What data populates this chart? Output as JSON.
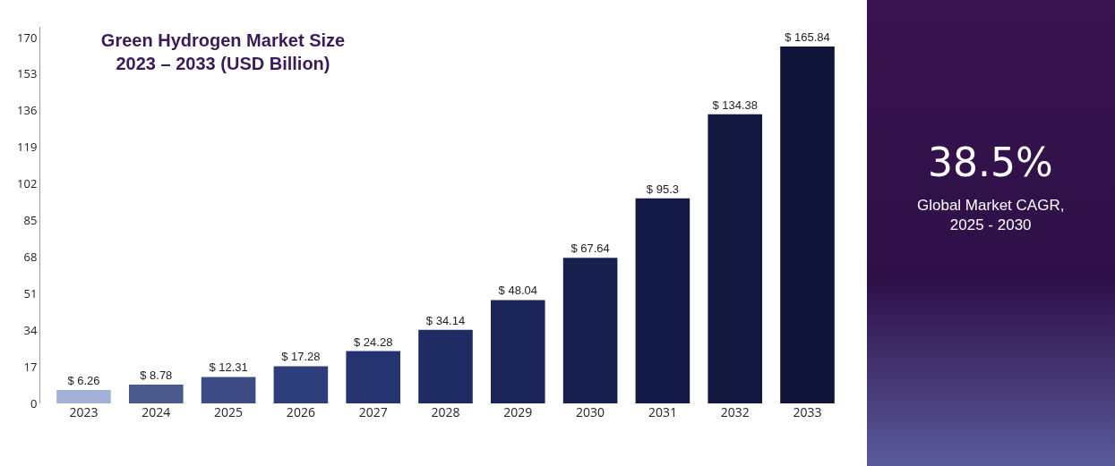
{
  "chart_data": {
    "type": "bar",
    "title": "Green Hydrogen Market Size\n2023 – 2033 (USD Billion)",
    "categories": [
      "2023",
      "2024",
      "2025",
      "2026",
      "2027",
      "2028",
      "2029",
      "2030",
      "2031",
      "2032",
      "2033"
    ],
    "values": [
      6.26,
      8.78,
      12.31,
      17.28,
      24.28,
      34.14,
      48.04,
      67.64,
      95.3,
      134.38,
      165.84
    ],
    "value_labels": [
      "$ 6.26",
      "$ 8.78",
      "$ 12.31",
      "$ 17.28",
      "$ 24.28",
      "$ 34.14",
      "$ 48.04",
      "$ 67.64",
      "$ 95.3",
      "$ 134.38",
      "$ 165.84"
    ],
    "colors": [
      "#a3b0d8",
      "#4a5a8c",
      "#3d4c85",
      "#2e3d7c",
      "#253370",
      "#1f2b63",
      "#1a2458",
      "#161f4e",
      "#131a45",
      "#11173f",
      "#0f1438"
    ],
    "ylim": [
      0,
      175
    ],
    "yticks": [
      0,
      17,
      34,
      51,
      68,
      85,
      102,
      119,
      136,
      153,
      170
    ],
    "grid": false,
    "annotations": [
      "38.5%",
      "Global Market CAGR,\n2025 - 2030"
    ]
  }
}
